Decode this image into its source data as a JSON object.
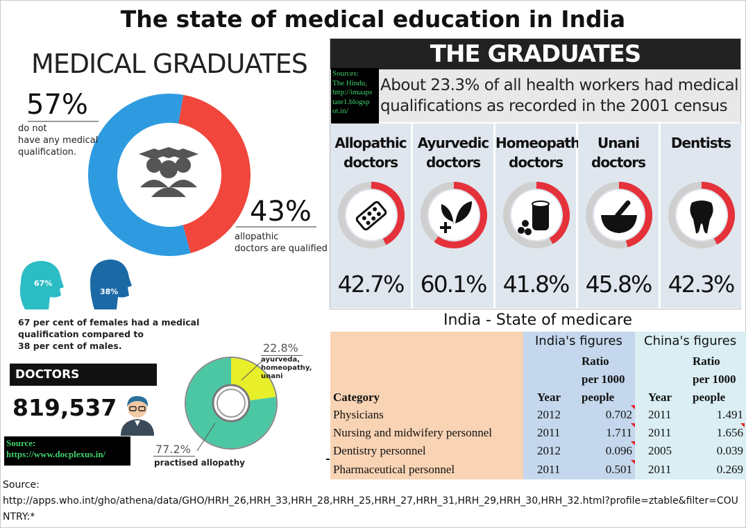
{
  "title": "The state of medical education in India",
  "medical_graduates": {
    "heading": "MEDICAL GRADUATES",
    "no_qual_pct": "57%",
    "no_qual_text": [
      "do not",
      "have any medical",
      "qualification."
    ],
    "allopathic_pct": "43%",
    "allopathic_text": [
      "allopathic",
      "doctors are qualified"
    ],
    "female_pct": "67%",
    "male_pct": "38%",
    "gender_text": [
      "67 per cent of females had a medical",
      "qualification compared to",
      "38 per cent of males."
    ],
    "colors": {
      "blue": "#2e9be0",
      "red": "#f0463c",
      "teal": "#2bbcc4",
      "dark_blue": "#1b6aa6"
    }
  },
  "doctors": {
    "label": "DOCTORS",
    "count": "819,537",
    "ayurveda_pct": "22.8%",
    "ayurveda_text": [
      "ayurveda,",
      "homeopathy,",
      "unani"
    ],
    "allopathy_pct": "77.2%",
    "allopathy_text": "practised allopathy",
    "source_label": "Source:",
    "source_url": "https://www.docplexus.in/"
  },
  "graduates_panel": {
    "header": "THE GRADUATES",
    "subtitle": [
      "About 23.3% of all health workers had medical",
      "qualifications as recorded in the 2001 census"
    ],
    "source": [
      "Sources:",
      "The Hindu,",
      "http://imaaps",
      "tate1.blogsp",
      "ot.in/"
    ]
  },
  "chart_data": [
    {
      "type": "pie",
      "title": "MEDICAL GRADUATES",
      "categories": [
        "do not have any medical qualification",
        "allopathic doctors are qualified"
      ],
      "values": [
        57,
        43
      ]
    },
    {
      "type": "pie",
      "title": "DOCTORS",
      "categories": [
        "practised allopathy",
        "ayurveda, homeopathy, unani"
      ],
      "values": [
        77.2,
        22.8
      ]
    },
    {
      "type": "bar",
      "title": "THE GRADUATES",
      "categories": [
        [
          "Allopathic",
          "doctors"
        ],
        [
          "Ayurvedic",
          "doctors"
        ],
        [
          "Homeopathy",
          "doctors"
        ],
        [
          "Unani",
          "doctors"
        ],
        [
          "Dentists"
        ]
      ],
      "values": [
        42.7,
        60.1,
        41.8,
        45.8,
        42.3
      ],
      "labels": [
        "42.7%",
        "60.1%",
        "41.8%",
        "45.8%",
        "42.3%"
      ],
      "icons": [
        "pill-pack-icon",
        "herb-plus-icon",
        "medicine-bottle-icon",
        "mortar-pestle-icon",
        "tooth-icon"
      ]
    },
    {
      "type": "table",
      "title": "India - State of medicare",
      "group_headers": [
        "India's figures",
        "China's figures"
      ],
      "columns": [
        "Category",
        "Year",
        [
          "Ratio",
          "per 1000",
          "people"
        ],
        "Year",
        [
          "Ratio",
          "per 1000",
          "people"
        ]
      ],
      "rows": [
        [
          "Physicians",
          "2012",
          "0.702",
          "2011",
          "1.491"
        ],
        [
          "Nursing and midwifery personnel",
          "2011",
          "1.711",
          "2011",
          "1.656"
        ],
        [
          "Dentistry personnel",
          "2012",
          "0.096",
          "2005",
          "0.039"
        ],
        [
          "Pharmaceutical personnel",
          "2011",
          "0.501",
          "2011",
          "0.269"
        ]
      ]
    }
  ],
  "footer": {
    "source_label": "Source:",
    "source_url": "http://apps.who.int/gho/athena/data/GHO/HRH_26,HRH_33,HRH_28,HRH_25,HRH_27,HRH_31,HRH_29,HRH_30,HRH_32.html?profile=ztable&filter=COUNTRY:*"
  }
}
